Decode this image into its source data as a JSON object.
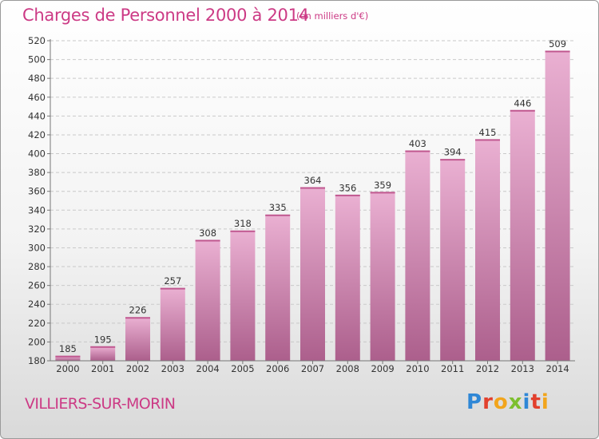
{
  "header": {
    "title": "Charges de Personnel 2000 à 2014",
    "subtitle": "(en milliers d'€)"
  },
  "footer": {
    "commune": "VILLIERS-SUR-MORIN",
    "brand_letters": [
      "P",
      "r",
      "o",
      "x",
      "i",
      "t",
      "i"
    ],
    "brand_colors": [
      "#2f87d6",
      "#e2402d",
      "#f2a51c",
      "#7dbf2f",
      "#2f87d6",
      "#e2402d",
      "#f2a51c"
    ]
  },
  "colors": {
    "accent": "#cc3a85",
    "bar_top": "#eab0d2",
    "bar_bottom": "#ac5f8c"
  },
  "chart_data": {
    "type": "bar",
    "title": "Charges de Personnel 2000 à 2014",
    "subtitle": "(en milliers d'€)",
    "categories": [
      "2000",
      "2001",
      "2002",
      "2003",
      "2004",
      "2005",
      "2006",
      "2007",
      "2008",
      "2009",
      "2010",
      "2011",
      "2012",
      "2013",
      "2014"
    ],
    "values": [
      185,
      195,
      226,
      257,
      308,
      318,
      335,
      364,
      356,
      359,
      403,
      394,
      415,
      446,
      509
    ],
    "ylim": [
      180,
      520
    ],
    "yticks": [
      180,
      200,
      220,
      240,
      260,
      280,
      300,
      320,
      340,
      360,
      380,
      400,
      420,
      440,
      460,
      480,
      500,
      520
    ],
    "grid": true,
    "data_labels": true
  }
}
